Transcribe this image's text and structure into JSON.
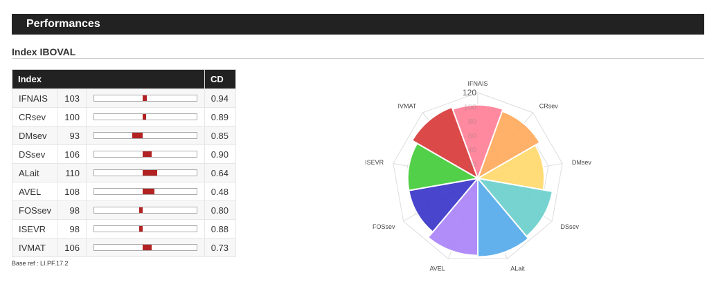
{
  "header": {
    "title": "Performances"
  },
  "section": {
    "title": "Index IBOVAL"
  },
  "table": {
    "col_index": "Index",
    "col_cd": "CD",
    "rows": [
      {
        "name": "IFNAIS",
        "value": "103",
        "cd": "0.94"
      },
      {
        "name": "CRsev",
        "value": "100",
        "cd": "0.89"
      },
      {
        "name": "DMsev",
        "value": "93",
        "cd": "0.85"
      },
      {
        "name": "DSsev",
        "value": "106",
        "cd": "0.90"
      },
      {
        "name": "ALait",
        "value": "110",
        "cd": "0.64"
      },
      {
        "name": "AVEL",
        "value": "108",
        "cd": "0.48"
      },
      {
        "name": "FOSsev",
        "value": "98",
        "cd": "0.80"
      },
      {
        "name": "ISEVR",
        "value": "98",
        "cd": "0.88"
      },
      {
        "name": "IVMAT",
        "value": "106",
        "cd": "0.73"
      }
    ]
  },
  "footer": {
    "base_ref": "Base ref : LI.PF.17.2"
  },
  "chart_data": {
    "type": "polar_area",
    "categories": [
      "IFNAIS",
      "CRsev",
      "DMsev",
      "DSsev",
      "ALait",
      "AVEL",
      "FOSsev",
      "ISEVR",
      "IVMAT"
    ],
    "values": [
      103,
      100,
      93,
      106,
      110,
      108,
      98,
      98,
      106
    ],
    "colors": [
      "#ff7f97",
      "#ffa95c",
      "#ffd96b",
      "#6bcfcc",
      "#55aaea",
      "#a983f7",
      "#3a35c8",
      "#44cc3a",
      "#d93a3a"
    ],
    "rlim": [
      0,
      120
    ],
    "r_ticks": [
      "20",
      "40",
      "60",
      "80",
      "100",
      "120"
    ],
    "grid": true
  }
}
